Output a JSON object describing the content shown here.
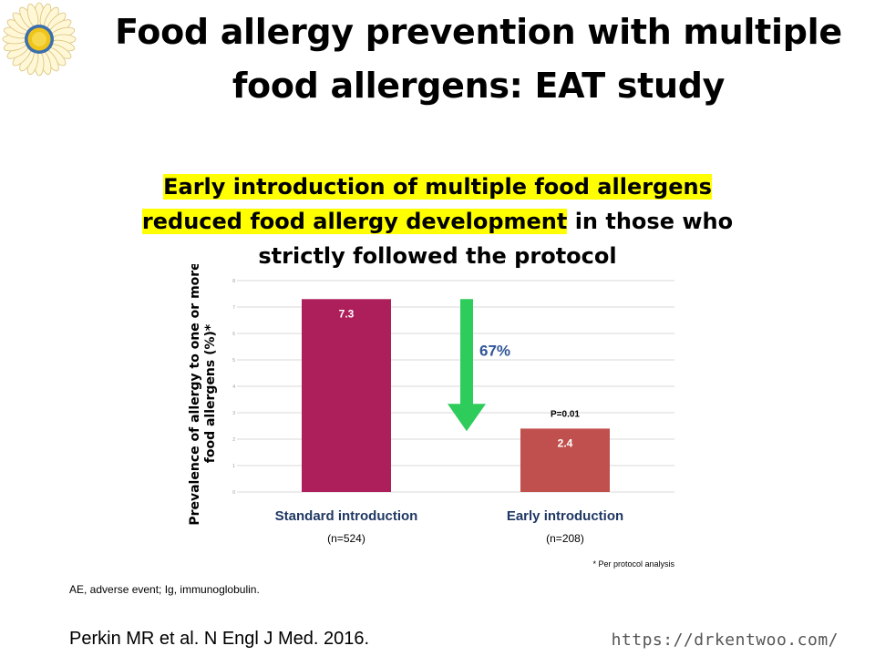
{
  "slide": {
    "title_line1": "Food allergy prevention with multiple",
    "title_line2": "food allergens: EAT study",
    "subtitle_highlight1": "Early introduction of multiple food allergens",
    "subtitle_highlight2": "reduced food allergy development",
    "subtitle_rest2": " in those who",
    "subtitle_line3": "strictly followed the protocol",
    "abbreviations": "AE, adverse event; Ig, immunoglobulin.",
    "reference": "Perkin MR et al. N Engl J Med. 2016.",
    "url": "https://drkentwoo.com/",
    "logo_icon": "sunflower-icon"
  },
  "chart_data": {
    "type": "bar",
    "categories": [
      "Standard introduction",
      "Early introduction"
    ],
    "category_sublabels": [
      "(n=524)",
      "(n=208)"
    ],
    "values": [
      7.3,
      2.4
    ],
    "data_labels": [
      "7.3",
      "2.4"
    ],
    "bar_colors": [
      "#ad1f5a",
      "#c0504d"
    ],
    "ylabel_line1": "Prevalence of allergy to one or more",
    "ylabel_line2": "food allergens (%)*",
    "ylim": [
      0,
      8
    ],
    "grid": true,
    "annotation_reduction": "67%",
    "annotation_p": "P=0.01",
    "footnote": "* Per protocol analysis",
    "arrow_color": "#2ecc5a",
    "category_label_color": "#1f3864"
  }
}
